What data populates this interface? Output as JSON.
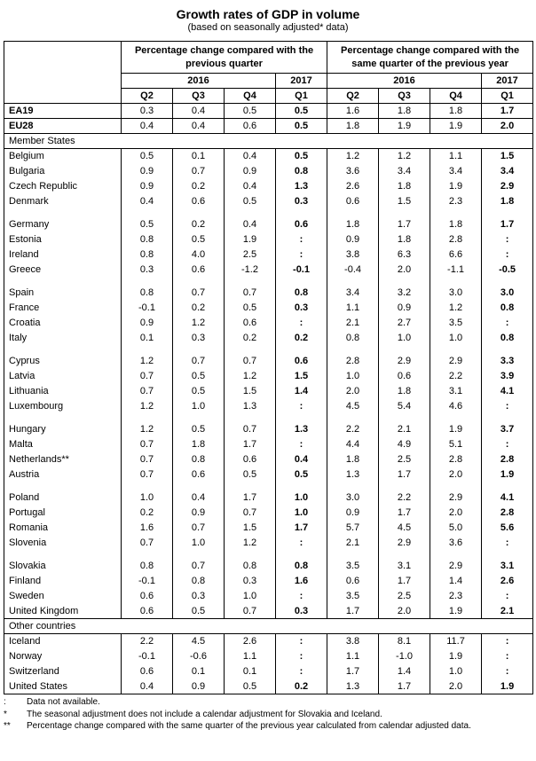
{
  "title": "Growth rates of GDP in volume",
  "subtitle": "(based on seasonally adjusted* data)",
  "table": {
    "group_headers": [
      "Percentage change compared with the previous quarter",
      "Percentage change compared with the same quarter of the previous year"
    ],
    "year_headers": [
      "2016",
      "2017",
      "2016",
      "2017"
    ],
    "quarter_headers": [
      "Q2",
      "Q3",
      "Q4",
      "Q1",
      "Q2",
      "Q3",
      "Q4",
      "Q1"
    ],
    "rows": [
      {
        "type": "data",
        "label": "EA19",
        "bold_label": true,
        "separator": true,
        "values": [
          "0.3",
          "0.4",
          "0.5",
          "0.5",
          "1.6",
          "1.8",
          "1.8",
          "1.7"
        ]
      },
      {
        "type": "data",
        "label": "EU28",
        "bold_label": true,
        "separator": true,
        "values": [
          "0.4",
          "0.4",
          "0.6",
          "0.5",
          "1.8",
          "1.9",
          "1.9",
          "2.0"
        ]
      },
      {
        "type": "section",
        "label": "Member States"
      },
      {
        "type": "data",
        "label": "Belgium",
        "values": [
          "0.5",
          "0.1",
          "0.4",
          "0.5",
          "1.2",
          "1.2",
          "1.1",
          "1.5"
        ]
      },
      {
        "type": "data",
        "label": "Bulgaria",
        "values": [
          "0.9",
          "0.7",
          "0.9",
          "0.8",
          "3.6",
          "3.4",
          "3.4",
          "3.4"
        ]
      },
      {
        "type": "data",
        "label": "Czech Republic",
        "values": [
          "0.9",
          "0.2",
          "0.4",
          "1.3",
          "2.6",
          "1.8",
          "1.9",
          "2.9"
        ]
      },
      {
        "type": "data",
        "label": "Denmark",
        "values": [
          "0.4",
          "0.6",
          "0.5",
          "0.3",
          "0.6",
          "1.5",
          "2.3",
          "1.8"
        ]
      },
      {
        "type": "gap"
      },
      {
        "type": "data",
        "label": "Germany",
        "values": [
          "0.5",
          "0.2",
          "0.4",
          "0.6",
          "1.8",
          "1.7",
          "1.8",
          "1.7"
        ]
      },
      {
        "type": "data",
        "label": "Estonia",
        "values": [
          "0.8",
          "0.5",
          "1.9",
          ":",
          "0.9",
          "1.8",
          "2.8",
          ":"
        ]
      },
      {
        "type": "data",
        "label": "Ireland",
        "values": [
          "0.8",
          "4.0",
          "2.5",
          ":",
          "3.8",
          "6.3",
          "6.6",
          ":"
        ]
      },
      {
        "type": "data",
        "label": "Greece",
        "values": [
          "0.3",
          "0.6",
          "-1.2",
          "-0.1",
          "-0.4",
          "2.0",
          "-1.1",
          "-0.5"
        ]
      },
      {
        "type": "gap"
      },
      {
        "type": "data",
        "label": "Spain",
        "values": [
          "0.8",
          "0.7",
          "0.7",
          "0.8",
          "3.4",
          "3.2",
          "3.0",
          "3.0"
        ]
      },
      {
        "type": "data",
        "label": "France",
        "values": [
          "-0.1",
          "0.2",
          "0.5",
          "0.3",
          "1.1",
          "0.9",
          "1.2",
          "0.8"
        ]
      },
      {
        "type": "data",
        "label": "Croatia",
        "values": [
          "0.9",
          "1.2",
          "0.6",
          ":",
          "2.1",
          "2.7",
          "3.5",
          ":"
        ]
      },
      {
        "type": "data",
        "label": "Italy",
        "values": [
          "0.1",
          "0.3",
          "0.2",
          "0.2",
          "0.8",
          "1.0",
          "1.0",
          "0.8"
        ]
      },
      {
        "type": "gap"
      },
      {
        "type": "data",
        "label": "Cyprus",
        "values": [
          "1.2",
          "0.7",
          "0.7",
          "0.6",
          "2.8",
          "2.9",
          "2.9",
          "3.3"
        ]
      },
      {
        "type": "data",
        "label": "Latvia",
        "values": [
          "0.7",
          "0.5",
          "1.2",
          "1.5",
          "1.0",
          "0.6",
          "2.2",
          "3.9"
        ]
      },
      {
        "type": "data",
        "label": "Lithuania",
        "values": [
          "0.7",
          "0.5",
          "1.5",
          "1.4",
          "2.0",
          "1.8",
          "3.1",
          "4.1"
        ]
      },
      {
        "type": "data",
        "label": "Luxembourg",
        "values": [
          "1.2",
          "1.0",
          "1.3",
          ":",
          "4.5",
          "5.4",
          "4.6",
          ":"
        ]
      },
      {
        "type": "gap"
      },
      {
        "type": "data",
        "label": "Hungary",
        "values": [
          "1.2",
          "0.5",
          "0.7",
          "1.3",
          "2.2",
          "2.1",
          "1.9",
          "3.7"
        ]
      },
      {
        "type": "data",
        "label": "Malta",
        "values": [
          "0.7",
          "1.8",
          "1.7",
          ":",
          "4.4",
          "4.9",
          "5.1",
          ":"
        ]
      },
      {
        "type": "data",
        "label": "Netherlands**",
        "values": [
          "0.7",
          "0.8",
          "0.6",
          "0.4",
          "1.8",
          "2.5",
          "2.8",
          "2.8"
        ]
      },
      {
        "type": "data",
        "label": "Austria",
        "values": [
          "0.7",
          "0.6",
          "0.5",
          "0.5",
          "1.3",
          "1.7",
          "2.0",
          "1.9"
        ]
      },
      {
        "type": "gap"
      },
      {
        "type": "data",
        "label": "Poland",
        "values": [
          "1.0",
          "0.4",
          "1.7",
          "1.0",
          "3.0",
          "2.2",
          "2.9",
          "4.1"
        ]
      },
      {
        "type": "data",
        "label": "Portugal",
        "values": [
          "0.2",
          "0.9",
          "0.7",
          "1.0",
          "0.9",
          "1.7",
          "2.0",
          "2.8"
        ]
      },
      {
        "type": "data",
        "label": "Romania",
        "values": [
          "1.6",
          "0.7",
          "1.5",
          "1.7",
          "5.7",
          "4.5",
          "5.0",
          "5.6"
        ]
      },
      {
        "type": "data",
        "label": "Slovenia",
        "values": [
          "0.7",
          "1.0",
          "1.2",
          ":",
          "2.1",
          "2.9",
          "3.6",
          ":"
        ]
      },
      {
        "type": "gap"
      },
      {
        "type": "data",
        "label": "Slovakia",
        "values": [
          "0.8",
          "0.7",
          "0.8",
          "0.8",
          "3.5",
          "3.1",
          "2.9",
          "3.1"
        ]
      },
      {
        "type": "data",
        "label": "Finland",
        "values": [
          "-0.1",
          "0.8",
          "0.3",
          "1.6",
          "0.6",
          "1.7",
          "1.4",
          "2.6"
        ]
      },
      {
        "type": "data",
        "label": "Sweden",
        "values": [
          "0.6",
          "0.3",
          "1.0",
          ":",
          "3.5",
          "2.5",
          "2.3",
          ":"
        ]
      },
      {
        "type": "data",
        "label": "United Kingdom",
        "values": [
          "0.6",
          "0.5",
          "0.7",
          "0.3",
          "1.7",
          "2.0",
          "1.9",
          "2.1"
        ]
      },
      {
        "type": "section",
        "label": "Other countries"
      },
      {
        "type": "data",
        "label": "Iceland",
        "values": [
          "2.2",
          "4.5",
          "2.6",
          ":",
          "3.8",
          "8.1",
          "11.7",
          ":"
        ]
      },
      {
        "type": "data",
        "label": "Norway",
        "values": [
          "-0.1",
          "-0.6",
          "1.1",
          ":",
          "1.1",
          "-1.0",
          "1.9",
          ":"
        ]
      },
      {
        "type": "data",
        "label": "Switzerland",
        "values": [
          "0.6",
          "0.1",
          "0.1",
          ":",
          "1.7",
          "1.4",
          "1.0",
          ":"
        ]
      },
      {
        "type": "data",
        "label": "United States",
        "values": [
          "0.4",
          "0.9",
          "0.5",
          "0.2",
          "1.3",
          "1.7",
          "2.0",
          "1.9"
        ]
      }
    ]
  },
  "footnotes": [
    {
      "marker": ":",
      "text": "Data not available."
    },
    {
      "marker": "*",
      "text": "The seasonal adjustment does not include a calendar adjustment for Slovakia and Iceland."
    },
    {
      "marker": "**",
      "text": "Percentage change compared with the same quarter of the previous year calculated from calendar adjusted data."
    }
  ]
}
